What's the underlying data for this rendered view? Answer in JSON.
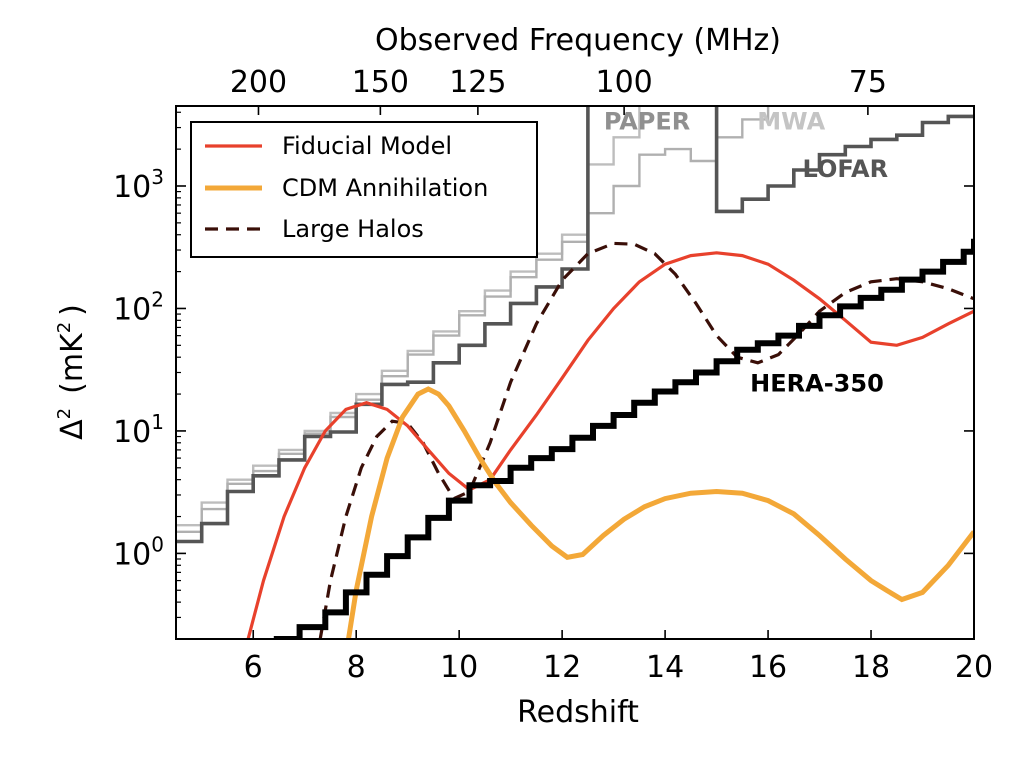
{
  "chart_data": {
    "type": "line",
    "title": "",
    "xlabel": "Redshift",
    "ylabel_parts": {
      "delta": "Δ",
      "delta_exp": "2",
      "open": "(mK",
      "unit_exp": "2",
      "close": ")"
    },
    "top_xlabel": "Observed Frequency (MHz)",
    "xlim": [
      4.5,
      20
    ],
    "ylim": [
      0.2,
      4500
    ],
    "yscale": "log",
    "grid": false,
    "legend_placement": "top-left",
    "x_ticks": [
      {
        "value": 6,
        "label": "6"
      },
      {
        "value": 8,
        "label": "8"
      },
      {
        "value": 10,
        "label": "10"
      },
      {
        "value": 12,
        "label": "12"
      },
      {
        "value": 14,
        "label": "14"
      },
      {
        "value": 16,
        "label": "16"
      },
      {
        "value": 18,
        "label": "18"
      },
      {
        "value": 20,
        "label": "20"
      }
    ],
    "y_ticks": [
      {
        "value": 1,
        "base": "10",
        "exp": "0"
      },
      {
        "value": 10,
        "base": "10",
        "exp": "1"
      },
      {
        "value": 100,
        "base": "10",
        "exp": "2"
      },
      {
        "value": 1000,
        "base": "10",
        "exp": "3"
      }
    ],
    "top_ticks": [
      {
        "value": 200,
        "label": "200"
      },
      {
        "value": 150,
        "label": "150"
      },
      {
        "value": 125,
        "label": "125"
      },
      {
        "value": 100,
        "label": "100"
      },
      {
        "value": 75,
        "label": "75"
      }
    ],
    "series": [
      {
        "name": "Fiducial Model",
        "color": "#e8412c",
        "width": 3.2,
        "dash": "",
        "legend": true,
        "x": [
          5.9,
          6.2,
          6.6,
          7.0,
          7.4,
          7.8,
          8.2,
          8.6,
          9.0,
          9.4,
          9.8,
          10.2,
          10.6,
          11.0,
          11.5,
          12.0,
          12.5,
          13.0,
          13.5,
          14.0,
          14.5,
          15.0,
          15.5,
          16.0,
          16.5,
          17.0,
          17.5,
          18.0,
          18.5,
          19.0,
          19.5,
          20.0
        ],
        "y": [
          0.2,
          0.6,
          2.0,
          5.0,
          10.0,
          15.0,
          17.0,
          15.0,
          11.0,
          7.0,
          4.5,
          3.3,
          4.0,
          7.0,
          13.5,
          27.0,
          55.0,
          100.0,
          165.0,
          230.0,
          270.0,
          285.0,
          270.0,
          230.0,
          170.0,
          120.0,
          80.0,
          53.0,
          50.0,
          58.0,
          75.0,
          95.0
        ]
      },
      {
        "name": "CDM Annihilation",
        "color": "#f3a838",
        "width": 5,
        "dash": "",
        "legend": true,
        "x": [
          7.85,
          8.0,
          8.3,
          8.6,
          8.9,
          9.2,
          9.4,
          9.6,
          9.8,
          10.1,
          10.4,
          10.7,
          11.0,
          11.4,
          11.8,
          12.1,
          12.4,
          12.8,
          13.2,
          13.6,
          14.0,
          14.5,
          15.0,
          15.5,
          16.0,
          16.5,
          17.0,
          17.5,
          18.0,
          18.3,
          18.6,
          19.0,
          19.5,
          20.0
        ],
        "y": [
          0.2,
          0.5,
          2.0,
          6.0,
          13.0,
          20.0,
          22.0,
          20.0,
          16.0,
          10.0,
          6.0,
          3.8,
          2.6,
          1.7,
          1.15,
          0.93,
          0.98,
          1.4,
          1.9,
          2.4,
          2.8,
          3.1,
          3.2,
          3.1,
          2.7,
          2.1,
          1.4,
          0.9,
          0.6,
          0.5,
          0.42,
          0.48,
          0.8,
          1.5
        ]
      },
      {
        "name": "Large Halos",
        "color": "#3a0f08",
        "width": 3.2,
        "dash": "13,8",
        "legend": true,
        "x": [
          7.3,
          7.5,
          7.8,
          8.1,
          8.4,
          8.7,
          9.0,
          9.3,
          9.6,
          9.9,
          10.2,
          10.6,
          11.0,
          11.5,
          12.0,
          12.5,
          13.0,
          13.4,
          13.8,
          14.2,
          14.6,
          15.0,
          15.4,
          15.8,
          16.2,
          16.6,
          17.0,
          17.5,
          18.0,
          18.5,
          19.0,
          19.5,
          20.0
        ],
        "y": [
          0.2,
          0.6,
          2.0,
          5.0,
          9.0,
          12.0,
          11.5,
          8.0,
          4.5,
          2.8,
          3.2,
          8.0,
          25.0,
          75.0,
          170.0,
          280.0,
          340.0,
          335.0,
          280.0,
          190.0,
          110.0,
          60.0,
          40.0,
          36.0,
          42.0,
          62.0,
          95.0,
          135.0,
          165.0,
          175.0,
          165.0,
          145.0,
          120.0
        ]
      },
      {
        "name": "HERA-350",
        "color": "#000000",
        "width": 6,
        "dash": "",
        "legend": false,
        "step": true,
        "steps": [
          [
            6.4,
            0.2
          ],
          [
            6.9,
            0.25
          ],
          [
            7.4,
            0.33
          ],
          [
            7.8,
            0.48
          ],
          [
            8.2,
            0.67
          ],
          [
            8.6,
            0.95
          ],
          [
            9.0,
            1.35
          ],
          [
            9.4,
            1.95
          ],
          [
            9.8,
            2.7
          ],
          [
            10.2,
            3.6
          ],
          [
            10.6,
            3.9
          ],
          [
            11.0,
            5.0
          ],
          [
            11.4,
            6.0
          ],
          [
            11.8,
            7.1
          ],
          [
            12.2,
            8.8
          ],
          [
            12.6,
            11.0
          ],
          [
            13.0,
            13.5
          ],
          [
            13.4,
            17.0
          ],
          [
            13.8,
            21.0
          ],
          [
            14.2,
            25.0
          ],
          [
            14.6,
            30.0
          ],
          [
            15.0,
            37.0
          ],
          [
            15.4,
            46.0
          ],
          [
            15.8,
            52.0
          ],
          [
            16.2,
            60.0
          ],
          [
            16.6,
            72.0
          ],
          [
            17.0,
            88.0
          ],
          [
            17.4,
            104.0
          ],
          [
            17.8,
            122.0
          ],
          [
            18.2,
            142.0
          ],
          [
            18.6,
            172.0
          ],
          [
            19.0,
            200.0
          ],
          [
            19.4,
            240.0
          ],
          [
            19.8,
            290.0
          ],
          [
            20.0,
            350.0
          ]
        ]
      },
      {
        "name": "PAPER",
        "color": "#bdbdbd",
        "width": 2.4,
        "dash": "",
        "legend": false,
        "step": true,
        "steps": [
          [
            4.5,
            1.7
          ],
          [
            5.0,
            2.6
          ],
          [
            5.5,
            4.0
          ],
          [
            6.0,
            5.2
          ],
          [
            6.5,
            7.0
          ],
          [
            7.0,
            10.0
          ],
          [
            7.5,
            14.0
          ],
          [
            8.0,
            20.0
          ],
          [
            8.5,
            31.0
          ],
          [
            9.0,
            45.0
          ],
          [
            9.5,
            65.0
          ],
          [
            10.0,
            95.0
          ],
          [
            10.5,
            140.0
          ],
          [
            11.0,
            200.0
          ],
          [
            11.5,
            280.0
          ],
          [
            12.0,
            400.0
          ],
          [
            12.5,
            1500.0
          ],
          [
            13.0,
            2500.0
          ],
          [
            13.5,
            6000.0
          ]
        ]
      },
      {
        "name": "MWA",
        "color": "#b0b0b0",
        "width": 2.4,
        "dash": "",
        "legend": false,
        "step": true,
        "steps": [
          [
            4.5,
            1.5
          ],
          [
            5.0,
            2.3
          ],
          [
            5.5,
            3.7
          ],
          [
            6.0,
            4.7
          ],
          [
            6.5,
            6.5
          ],
          [
            7.0,
            9.5
          ],
          [
            7.5,
            13.0
          ],
          [
            8.0,
            18.0
          ],
          [
            8.5,
            28.0
          ],
          [
            9.0,
            42.0
          ],
          [
            9.5,
            60.0
          ],
          [
            10.0,
            88.0
          ],
          [
            10.5,
            125.0
          ],
          [
            11.0,
            180.0
          ],
          [
            11.5,
            250.0
          ],
          [
            12.0,
            350.0
          ],
          [
            12.5,
            600.0
          ],
          [
            13.0,
            1000.0
          ],
          [
            13.5,
            1800.0
          ],
          [
            14.0,
            2000.0
          ],
          [
            14.5,
            1600.0
          ],
          [
            15.0,
            2500.0
          ],
          [
            15.5,
            3500.0
          ],
          [
            16.0,
            6000.0
          ]
        ]
      },
      {
        "name": "LOFAR",
        "color": "#555555",
        "width": 3.6,
        "dash": "",
        "legend": false,
        "step": true,
        "steps": [
          [
            4.5,
            1.25
          ],
          [
            5.0,
            1.75
          ],
          [
            5.5,
            3.2
          ],
          [
            6.0,
            4.3
          ],
          [
            6.5,
            5.8
          ],
          [
            7.0,
            9.0
          ],
          [
            7.5,
            9.8
          ],
          [
            8.0,
            16.5
          ],
          [
            8.5,
            24.0
          ],
          [
            9.0,
            25.0
          ],
          [
            9.5,
            36.0
          ],
          [
            10.0,
            50.0
          ],
          [
            10.5,
            75.0
          ],
          [
            11.0,
            110.0
          ],
          [
            11.5,
            150.0
          ],
          [
            12.0,
            210.0
          ],
          [
            12.5,
            300.0
          ],
          [
            12.5,
            6000.0
          ],
          [
            15.0,
            6000.0
          ],
          [
            15.0,
            620.0
          ],
          [
            15.5,
            780.0
          ],
          [
            16.0,
            1000.0
          ],
          [
            16.5,
            1350.0
          ],
          [
            17.0,
            1800.0
          ],
          [
            17.5,
            2100.0
          ],
          [
            18.0,
            2400.0
          ],
          [
            18.5,
            2600.0
          ],
          [
            19.0,
            3300.0
          ],
          [
            19.5,
            3700.0
          ],
          [
            20.0,
            3700.0
          ]
        ]
      }
    ],
    "annotations": [
      {
        "text": "PAPER",
        "x": 13.65,
        "y": 2900,
        "color": "#909090"
      },
      {
        "text": "MWA",
        "x": 16.45,
        "y": 2900,
        "color": "#c4c4c4"
      },
      {
        "text": "LOFAR",
        "x": 17.5,
        "y": 1180,
        "color": "#555555"
      },
      {
        "text": "HERA-350",
        "x": 16.95,
        "y": 21,
        "color": "#000000"
      }
    ]
  }
}
